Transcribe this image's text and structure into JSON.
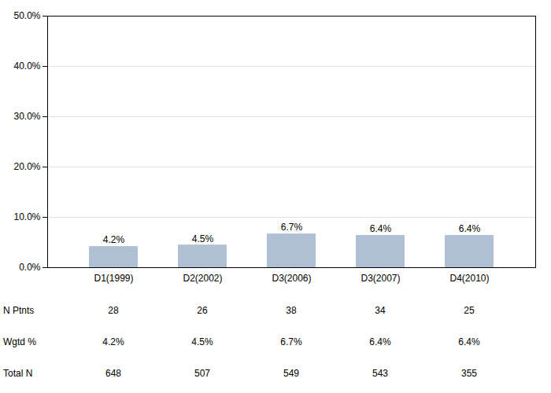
{
  "chart_data": {
    "type": "bar",
    "categories": [
      "D1(1999)",
      "D2(2002)",
      "D3(2006)",
      "D3(2007)",
      "D4(2010)"
    ],
    "values": [
      4.2,
      4.5,
      6.7,
      6.4,
      6.4
    ],
    "value_labels": [
      "4.2%",
      "4.5%",
      "6.7%",
      "6.4%",
      "6.4%"
    ],
    "data_labels": true,
    "color": "#b0c0d4",
    "ylim": [
      0,
      50
    ],
    "yticks": [
      {
        "value": 0,
        "label": "0.0%"
      },
      {
        "value": 10,
        "label": "10.0%"
      },
      {
        "value": 20,
        "label": "20.0%"
      },
      {
        "value": 30,
        "label": "30.0%"
      },
      {
        "value": 40,
        "label": "40.0%"
      },
      {
        "value": 50,
        "label": "50.0%"
      }
    ],
    "grid": true,
    "table": [
      {
        "label": "N Ptnts",
        "cells": [
          "28",
          "26",
          "38",
          "34",
          "25"
        ]
      },
      {
        "label": "Wgtd %",
        "cells": [
          "4.2%",
          "4.5%",
          "6.7%",
          "6.4%",
          "6.4%"
        ]
      },
      {
        "label": "Total N",
        "cells": [
          "648",
          "507",
          "549",
          "543",
          "355"
        ]
      }
    ]
  }
}
